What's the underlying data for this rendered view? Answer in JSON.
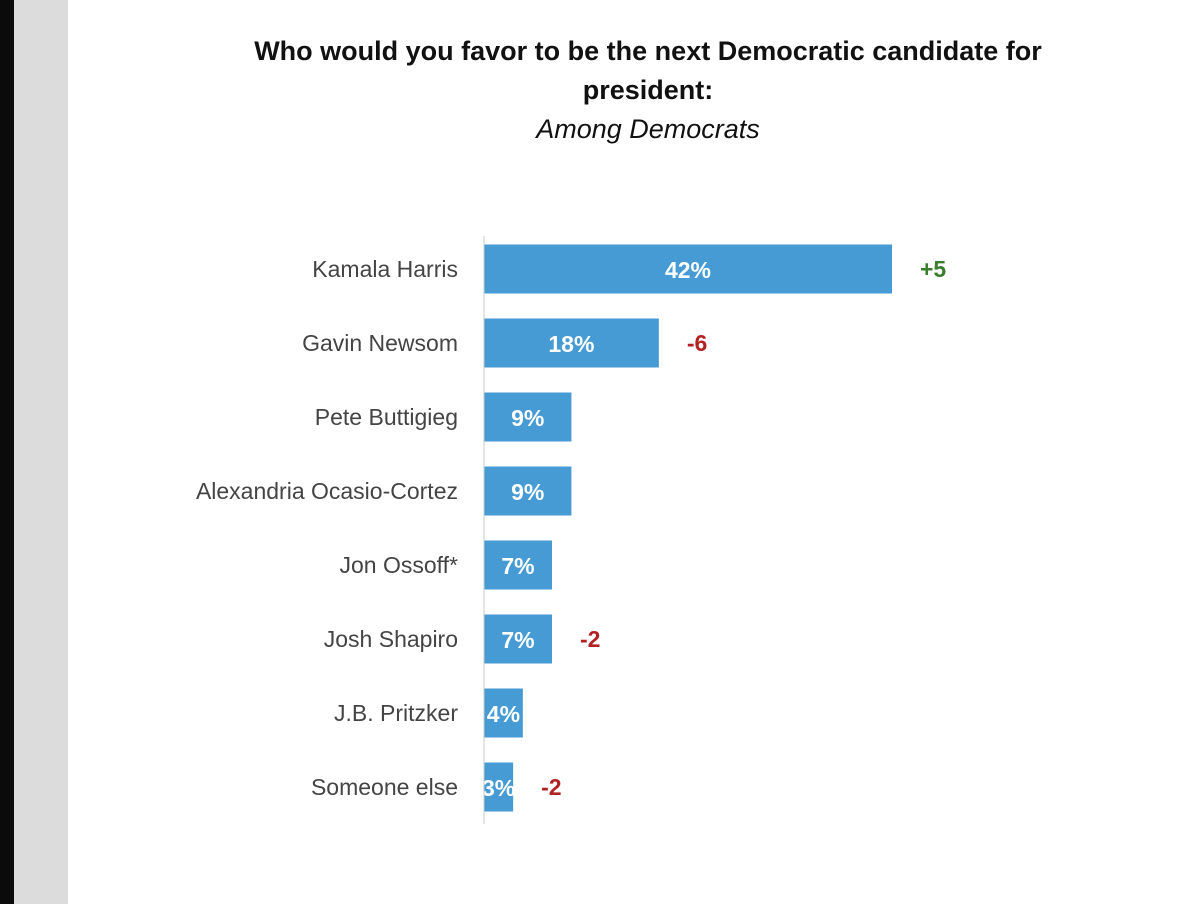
{
  "title_lines": [
    "Who would you favor to be the next Democratic candidate for",
    "president:"
  ],
  "subtitle": "Among Democrats",
  "colors": {
    "bar": "#469bd4",
    "positive_change": "#3a7d2c",
    "negative_change": "#b32222",
    "axis": "#c8c8c8",
    "left_margin": "#dcdcdd"
  },
  "chart_data": {
    "type": "bar",
    "orientation": "horizontal",
    "title": "Who would you favor to be the next Democratic candidate for president:",
    "subtitle": "Among Democrats",
    "categories": [
      "Kamala Harris",
      "Gavin Newsom",
      "Pete Buttigieg",
      "Alexandria Ocasio-Cortez",
      "Jon Ossoff*",
      "Josh Shapiro",
      "J.B. Pritzker",
      "Someone else"
    ],
    "values": [
      42,
      18,
      9,
      9,
      7,
      7,
      4,
      3
    ],
    "value_labels": [
      "42%",
      "18%",
      "9%",
      "9%",
      "7%",
      "7%",
      "4%",
      "3%"
    ],
    "changes": [
      "+5",
      "-6",
      "",
      "",
      "",
      "-2",
      "",
      "-2"
    ],
    "xlim": [
      0,
      42
    ],
    "grid": false,
    "legend": "none"
  }
}
